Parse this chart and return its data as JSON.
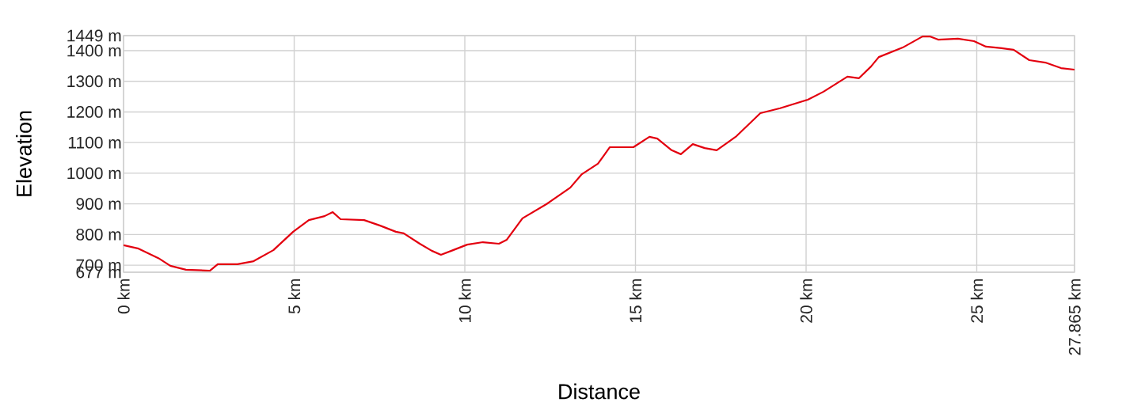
{
  "chart_data": {
    "type": "line",
    "xlabel": "Distance",
    "ylabel": "Elevation",
    "x": [
      0,
      0.44,
      1.02,
      1.37,
      1.83,
      2.53,
      2.76,
      3.34,
      3.81,
      4.39,
      4.97,
      5.43,
      5.89,
      6.13,
      6.36,
      7.05,
      7.52,
      7.98,
      8.21,
      8.68,
      9.03,
      9.3,
      9.61,
      10.07,
      10.53,
      11.0,
      11.23,
      11.69,
      12.39,
      13.09,
      13.43,
      13.9,
      14.25,
      14.94,
      15.41,
      15.64,
      16.06,
      16.33,
      16.68,
      17.03,
      17.38,
      17.61,
      17.96,
      18.66,
      19.24,
      20.05,
      20.51,
      21.21,
      21.55,
      21.9,
      22.13,
      22.83,
      23.41,
      23.64,
      23.87,
      24.45,
      24.92,
      25.27,
      25.73,
      26.08,
      26.54,
      27.01,
      27.47,
      27.865
    ],
    "series": [
      {
        "color": "#e3000f",
        "values": [
          765,
          754,
          723,
          698,
          685,
          682,
          703,
          703,
          713,
          749,
          809,
          847,
          860,
          873,
          850,
          847,
          829,
          809,
          804,
          770,
          747,
          734,
          747,
          767,
          775,
          770,
          783,
          853,
          899,
          953,
          997,
          1031,
          1085,
          1085,
          1119,
          1113,
          1075,
          1062,
          1095,
          1082,
          1075,
          1093,
          1121,
          1196,
          1212,
          1240,
          1266,
          1315,
          1310,
          1348,
          1379,
          1410,
          1446,
          1446,
          1436,
          1439,
          1431,
          1413,
          1408,
          1403,
          1369,
          1361,
          1343,
          1338
        ]
      }
    ],
    "xlim": [
      0,
      27.865
    ],
    "ylim": [
      677,
      1449
    ],
    "xticks": [
      {
        "value": 0,
        "label": "0 km"
      },
      {
        "value": 5,
        "label": "5 km"
      },
      {
        "value": 10,
        "label": "10 km"
      },
      {
        "value": 15,
        "label": "15 km"
      },
      {
        "value": 20,
        "label": "20 km"
      },
      {
        "value": 25,
        "label": "25 km"
      },
      {
        "value": 27.865,
        "label": "27.865 km"
      }
    ],
    "yticks": [
      {
        "value": 677,
        "label": "677 m"
      },
      {
        "value": 700,
        "label": "700 m"
      },
      {
        "value": 800,
        "label": "800 m"
      },
      {
        "value": 900,
        "label": "900 m"
      },
      {
        "value": 1000,
        "label": "1000 m"
      },
      {
        "value": 1100,
        "label": "1100 m"
      },
      {
        "value": 1200,
        "label": "1200 m"
      },
      {
        "value": 1300,
        "label": "1300 m"
      },
      {
        "value": 1400,
        "label": "1400 m"
      },
      {
        "value": 1449,
        "label": "1449 m"
      }
    ],
    "grid": true,
    "marker": "none",
    "line_style": "solid"
  }
}
